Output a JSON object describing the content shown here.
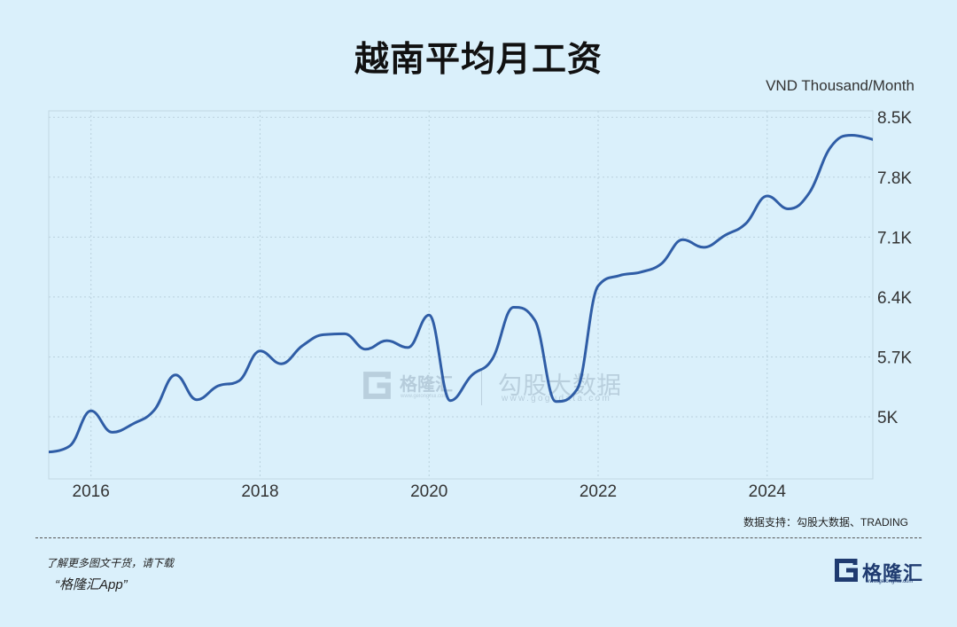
{
  "colors": {
    "background": "#daf0fb",
    "line": "#2f5da6",
    "grid": "#b9d1dd",
    "tick_text": "#333333",
    "logo": "#1f3b70",
    "watermark": "#9fb5c6"
  },
  "chart_data": {
    "type": "line",
    "title": "越南平均月工资",
    "ylabel": "VND Thousand/Month",
    "xlim": [
      "2015-07",
      "2025-04"
    ],
    "ylim": [
      4275,
      8575
    ],
    "y_axis_side": "right",
    "grid": true,
    "x_tick_labels": [
      "2016",
      "2018",
      "2020",
      "2022",
      "2024"
    ],
    "y_tick_values": [
      8500,
      7800,
      7100,
      6400,
      5700,
      5000
    ],
    "y_tick_labels": [
      "8.5K",
      "7.8K",
      "7.1K",
      "6.4K",
      "5.7K",
      "5K"
    ],
    "x": [
      "2015-07",
      "2015-10",
      "2016-01",
      "2016-04",
      "2016-07",
      "2016-10",
      "2017-01",
      "2017-04",
      "2017-07",
      "2017-10",
      "2018-01",
      "2018-04",
      "2018-07",
      "2018-10",
      "2019-01",
      "2019-04",
      "2019-07",
      "2019-10",
      "2020-01",
      "2020-04",
      "2020-07",
      "2020-10",
      "2021-01",
      "2021-04",
      "2021-07",
      "2021-10",
      "2022-01",
      "2022-04",
      "2022-07",
      "2022-10",
      "2023-01",
      "2023-04",
      "2023-07",
      "2023-10",
      "2024-01",
      "2024-04",
      "2024-07",
      "2024-10",
      "2025-01",
      "2025-04"
    ],
    "series": [
      {
        "values": [
          4590,
          4660,
          5070,
          4820,
          4920,
          5080,
          5490,
          5200,
          5360,
          5420,
          5770,
          5620,
          5830,
          5960,
          5970,
          5790,
          5890,
          5810,
          6190,
          5190,
          5480,
          5680,
          6280,
          6130,
          5180,
          5320,
          6530,
          6650,
          6690,
          6790,
          7070,
          6980,
          7120,
          7260,
          7580,
          7430,
          7620,
          8150,
          8290,
          8240
        ]
      }
    ]
  },
  "source": "数据支持：勾股大数据、TRADING",
  "footer": {
    "cta": "了解更多图文干货，请下载",
    "app": "“格隆汇App”"
  },
  "logo": {
    "icon": "gelonghui-g-icon",
    "name": "格隆汇",
    "url": "www.gelonghui.com"
  },
  "watermark": {
    "icon": "gelonghui-g-icon",
    "brand_1": "格隆汇",
    "url_1": "www.gelonghui.com",
    "brand_2": "勾股大数据",
    "url_2": "www.gogudata.com"
  }
}
